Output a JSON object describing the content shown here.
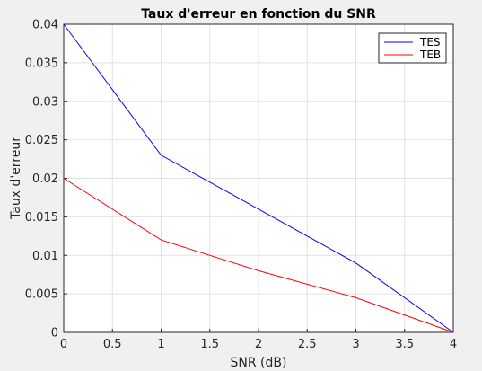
{
  "chart_data": {
    "type": "line",
    "title": "Taux d'erreur en fonction du SNR",
    "xlabel": "SNR (dB)",
    "ylabel": "Taux d'erreur",
    "xlim": [
      0,
      4
    ],
    "ylim": [
      0,
      0.04
    ],
    "xticks": [
      "0",
      "0.5",
      "1",
      "1.5",
      "2",
      "2.5",
      "3",
      "3.5",
      "4"
    ],
    "yticks": [
      "0",
      "0.005",
      "0.01",
      "0.015",
      "0.02",
      "0.025",
      "0.03",
      "0.035",
      "0.04"
    ],
    "grid": true,
    "legend_position": "top-right",
    "x": [
      0,
      1,
      2,
      3,
      4
    ],
    "series": [
      {
        "name": "TES",
        "color": "#0000ff",
        "values": [
          0.04,
          0.023,
          0.016,
          0.009,
          0.0
        ]
      },
      {
        "name": "TEB",
        "color": "#ff0000",
        "values": [
          0.02,
          0.012,
          0.008,
          0.0045,
          0.0
        ]
      }
    ]
  }
}
